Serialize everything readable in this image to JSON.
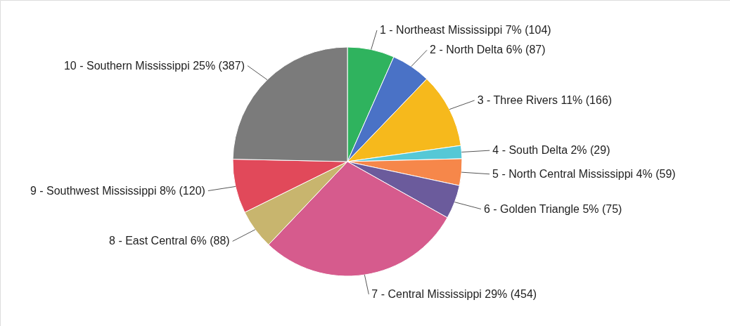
{
  "chart_data": {
    "type": "pie",
    "categories": [
      "1 - Northeast Mississippi",
      "2 - North Delta",
      "3 - Three Rivers",
      "4 - South Delta",
      "5 - North Central Mississippi",
      "6 - Golden Triangle",
      "7 - Central Mississippi",
      "8 - East Central",
      "9 - Southwest Mississippi",
      "10 - Southern Mississippi"
    ],
    "values": [
      104,
      87,
      166,
      29,
      59,
      75,
      454,
      88,
      120,
      387
    ],
    "value_labels": [
      "7% (104)",
      "6% (87)",
      "11% (166)",
      "2% (29)",
      "4% (59)",
      "5% (75)",
      "29% (454)",
      "6% (88)",
      "8% (120)",
      "25% (387)"
    ],
    "colors": [
      "#2fb35e",
      "#4a72c6",
      "#f6b91c",
      "#55c8d6",
      "#f6874a",
      "#6b5b9c",
      "#d65b8d",
      "#c8b56e",
      "#e1495a",
      "#7b7b7b"
    ]
  }
}
